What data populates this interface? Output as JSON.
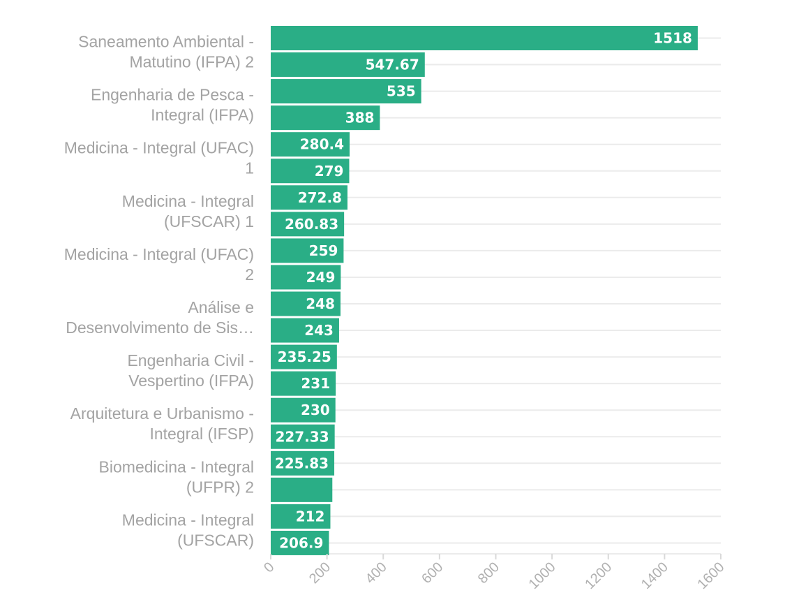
{
  "colors": {
    "bar": "#2aae86",
    "grid": "#ebebeb",
    "label": "#a3a3a3",
    "value_text": "#ffffff"
  },
  "chart_data": {
    "type": "bar",
    "orientation": "horizontal",
    "title": "",
    "xlabel": "",
    "ylabel": "",
    "xlim": [
      0,
      1600
    ],
    "x_ticks": [
      "0",
      "200",
      "400",
      "600",
      "800",
      "1000",
      "1200",
      "1400",
      "1600"
    ],
    "grid": true,
    "legend": "none",
    "values": [
      1518,
      547.67,
      535,
      388,
      280.4,
      279,
      272.8,
      260.83,
      259,
      249,
      248,
      243,
      235.25,
      231,
      230,
      227.33,
      225.83,
      219,
      212,
      206.9
    ],
    "value_labels": [
      "1518",
      "547.67",
      "535",
      "388",
      "280.4",
      "279",
      "272.8",
      "260.83",
      "259",
      "249",
      "248",
      "243",
      "235.25",
      "231",
      "230",
      "227.33",
      "225.83",
      "",
      "212",
      "206.9"
    ],
    "category_labels": [
      [
        "Saneamento Ambiental -",
        "Matutino (IFPA) 2"
      ],
      [
        "Engenharia de Pesca -",
        "Integral (IFPA)"
      ],
      [
        "Medicina - Integral (UFAC)",
        "1"
      ],
      [
        "Medicina - Integral",
        "(UFSCAR) 1"
      ],
      [
        "Medicina - Integral (UFAC)",
        "2"
      ],
      [
        "Análise e",
        "Desenvolvimento de Sis…"
      ],
      [
        "Engenharia Civil -",
        "Vespertino (IFPA)"
      ],
      [
        "Arquitetura e Urbanismo -",
        "Integral (IFSP)"
      ],
      [
        "Biomedicina - Integral",
        "(UFPR) 2"
      ],
      [
        "Medicina - Integral",
        "(UFSCAR)"
      ]
    ]
  }
}
